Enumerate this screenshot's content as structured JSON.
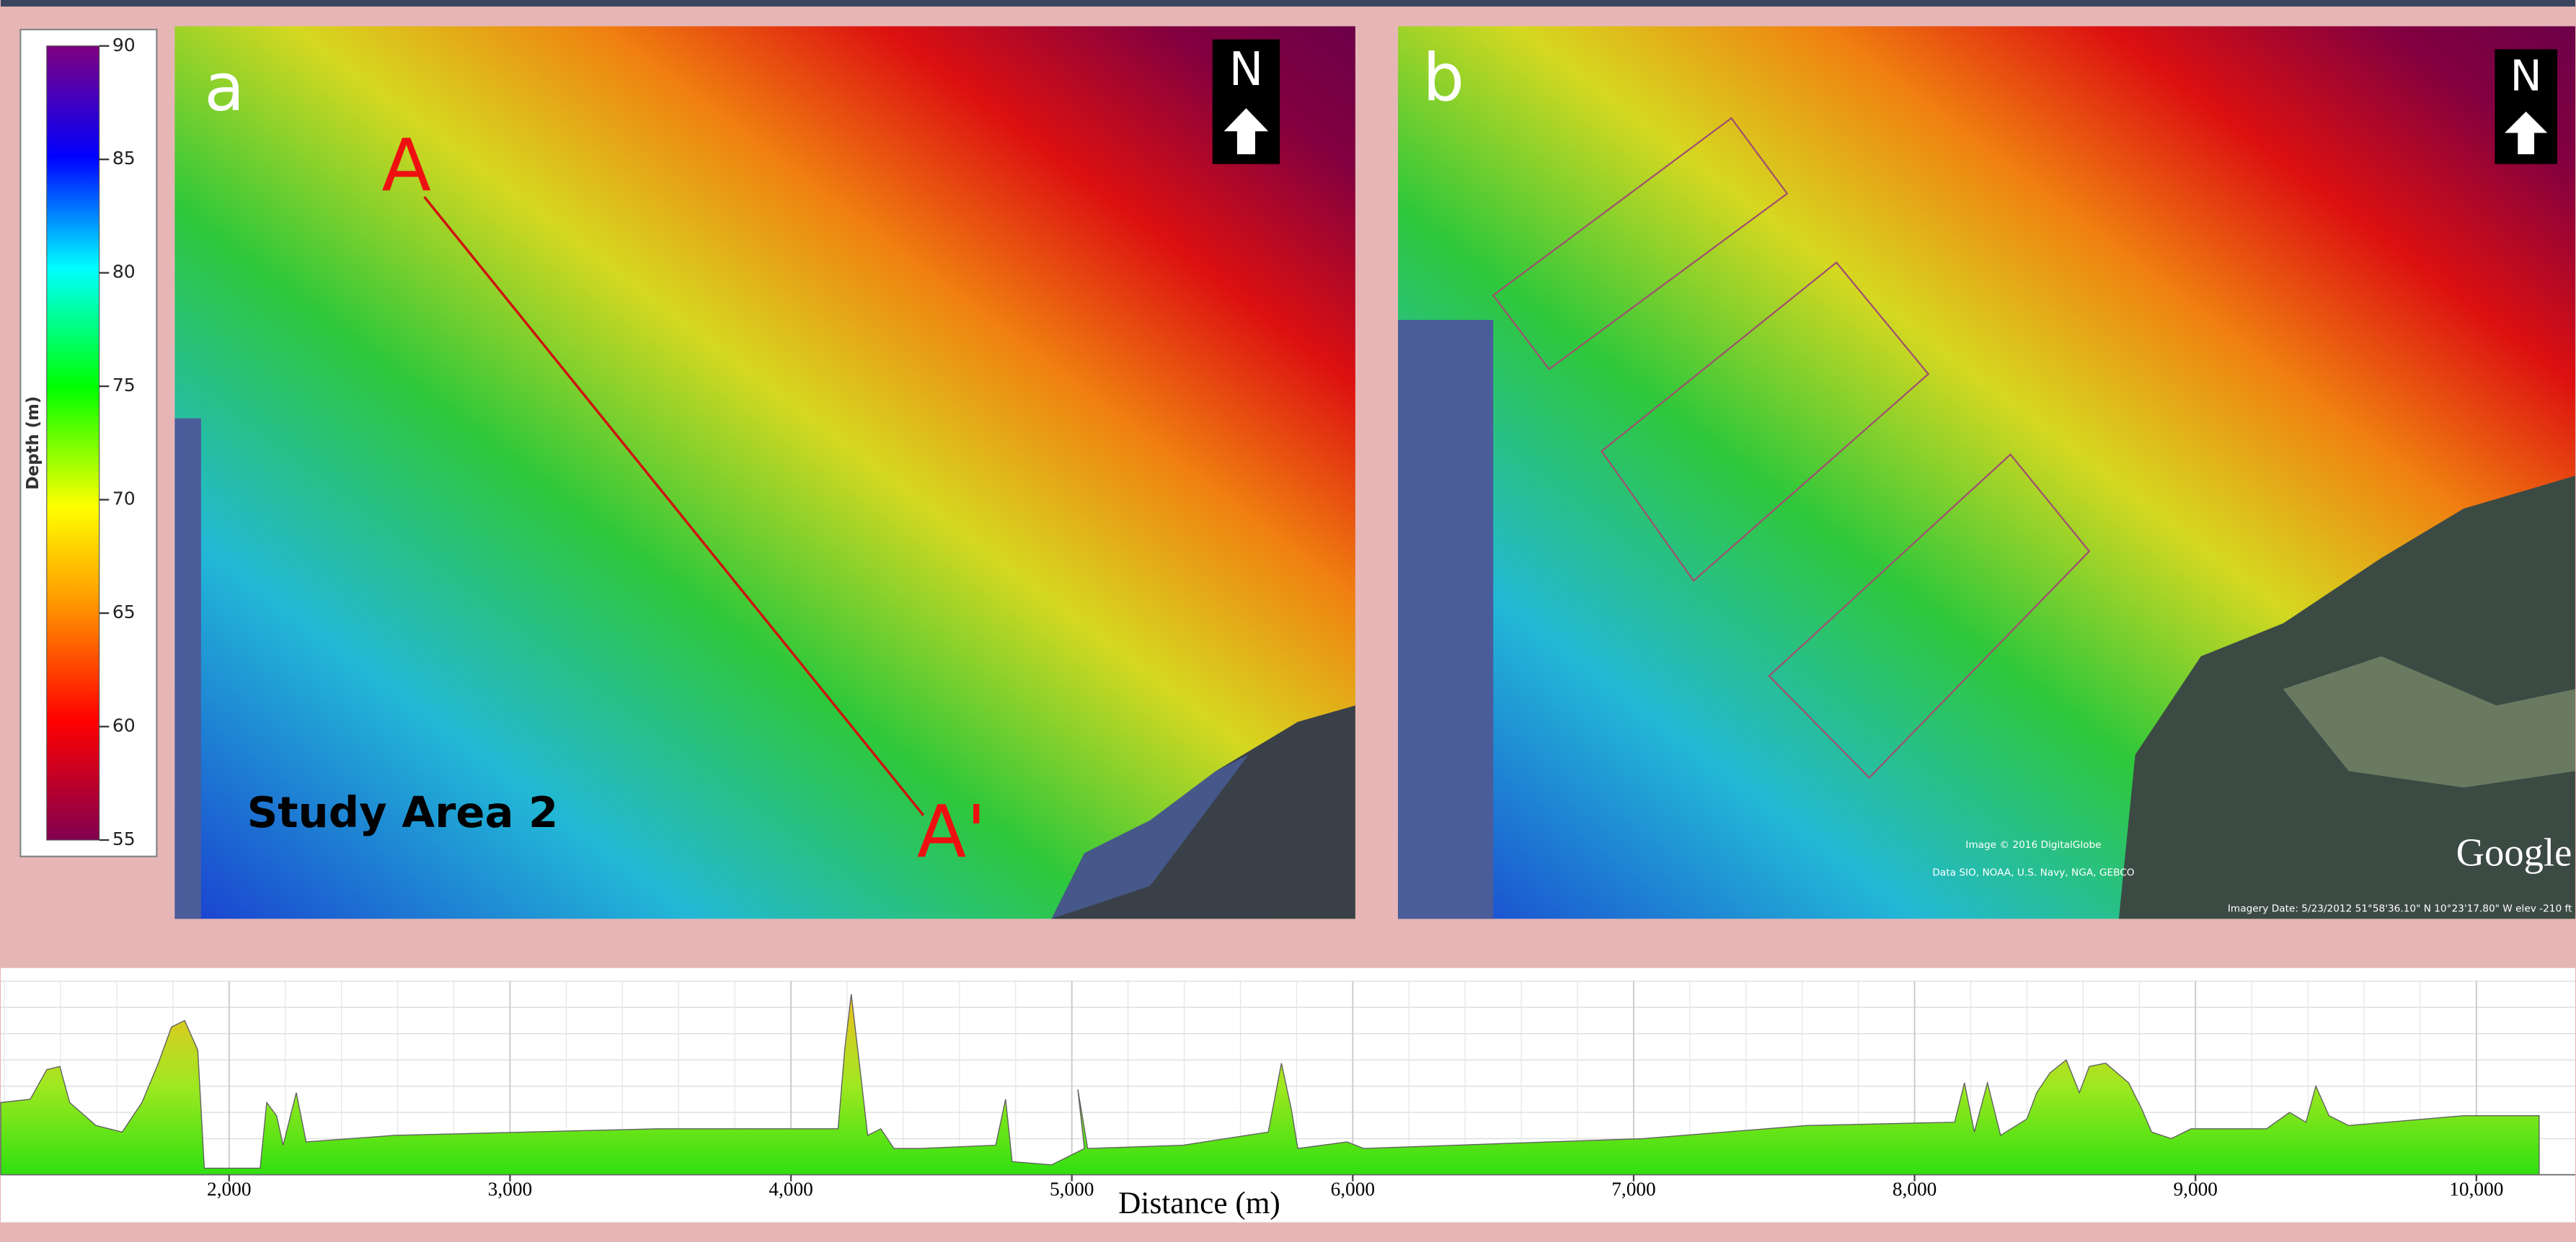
{
  "colorbar": {
    "label": "Depth (m)",
    "lim": [
      55,
      90
    ],
    "ticks": [
      90,
      85,
      80,
      75,
      70,
      65,
      60,
      55
    ]
  },
  "panel_a": {
    "label": "a",
    "north": "N",
    "start": "A",
    "end": "A'",
    "area": "Study Area 2"
  },
  "panel_b": {
    "label": "b",
    "north": "N",
    "copyright": "Image © 2016 DigitalGlobe",
    "data_credit": "Data SIO, NOAA, U.S. Navy, NGA, GEBCO",
    "imagery": "Imagery Date: 5/23/2012    51°58'36.10\" N   10°23'17.80\" W  elev  -210 ft",
    "brand": "Google"
  },
  "profile": {
    "xlabel": "Distance (m)",
    "xlim": [
      1187,
      10352
    ],
    "xticks": [
      {
        "value": 2000,
        "label": "2,000"
      },
      {
        "value": 3000,
        "label": "3,000"
      },
      {
        "value": 4000,
        "label": "4,000"
      },
      {
        "value": 5000,
        "label": "5,000"
      },
      {
        "value": 6000,
        "label": "6,000"
      },
      {
        "value": 7000,
        "label": "7,000"
      },
      {
        "value": 8000,
        "label": "8,000"
      },
      {
        "value": 9000,
        "label": "9,000"
      },
      {
        "value": 10000,
        "label": "10,000"
      }
    ]
  }
}
